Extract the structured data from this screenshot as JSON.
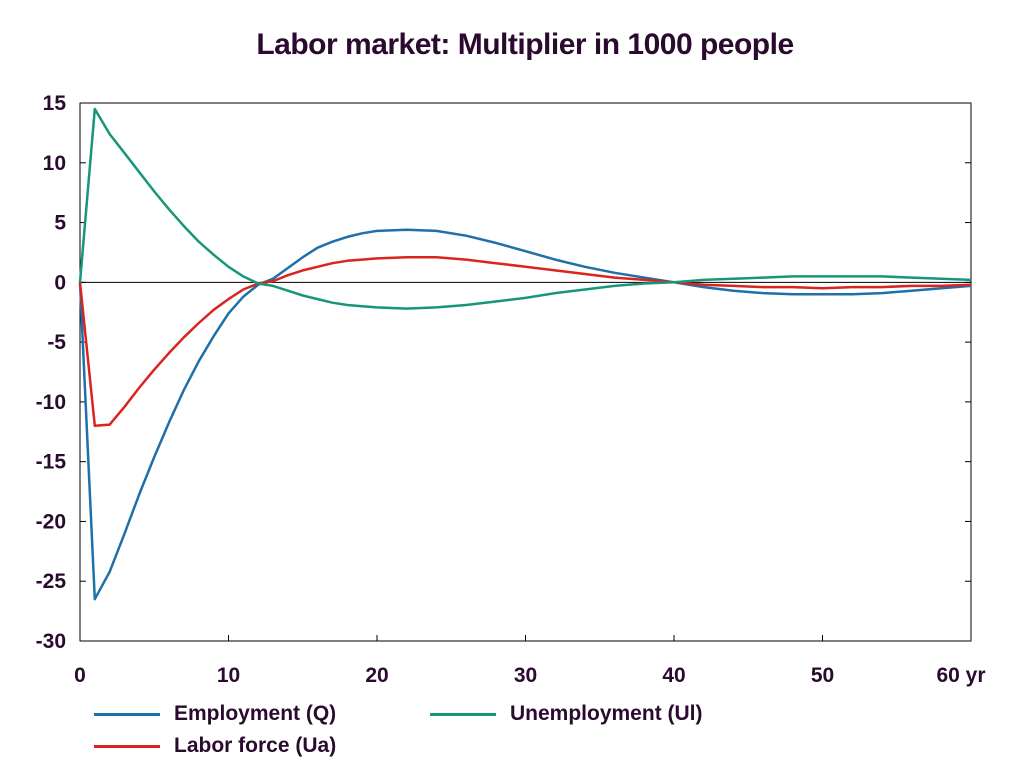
{
  "chart_data": {
    "type": "line",
    "title": "Labor market: Multiplier in 1000 people",
    "xlabel": "",
    "ylabel": "",
    "xlim": [
      0,
      60
    ],
    "ylim": [
      -30,
      15
    ],
    "x_ticks": [
      0,
      10,
      20,
      30,
      40,
      50,
      60
    ],
    "x_tick_labels": [
      "0",
      "10",
      "20",
      "30",
      "40",
      "50",
      "60 yr"
    ],
    "y_ticks": [
      15,
      10,
      5,
      0,
      -5,
      -10,
      -15,
      -20,
      -25,
      -30
    ],
    "y_tick_labels": [
      "15",
      "10",
      "5",
      "0",
      "-5",
      "-10",
      "-15",
      "-20",
      "-25",
      "-30"
    ],
    "grid": false,
    "zero_line": true,
    "legend_position": "bottom",
    "series": [
      {
        "name": "Employment (Q)",
        "color": "#1f6fa8",
        "x": [
          0,
          1,
          2,
          3,
          4,
          5,
          6,
          7,
          8,
          9,
          10,
          11,
          12,
          13,
          14,
          15,
          16,
          17,
          18,
          19,
          20,
          22,
          24,
          26,
          28,
          30,
          32,
          34,
          36,
          38,
          40,
          42,
          44,
          46,
          48,
          50,
          52,
          54,
          56,
          58,
          60
        ],
        "y": [
          0,
          -26.5,
          -24.2,
          -21.0,
          -17.7,
          -14.6,
          -11.7,
          -9.0,
          -6.6,
          -4.5,
          -2.6,
          -1.2,
          -0.2,
          0.3,
          1.2,
          2.1,
          2.9,
          3.4,
          3.8,
          4.1,
          4.3,
          4.4,
          4.3,
          3.9,
          3.3,
          2.6,
          1.9,
          1.3,
          0.8,
          0.4,
          0.0,
          -0.4,
          -0.7,
          -0.9,
          -1.0,
          -1.0,
          -1.0,
          -0.9,
          -0.7,
          -0.5,
          -0.3
        ]
      },
      {
        "name": "Labor force (Ua)",
        "color": "#d9241f",
        "x": [
          0,
          1,
          2,
          3,
          4,
          5,
          6,
          7,
          8,
          9,
          10,
          11,
          12,
          13,
          14,
          15,
          16,
          17,
          18,
          19,
          20,
          22,
          24,
          26,
          28,
          30,
          32,
          34,
          36,
          38,
          40,
          42,
          44,
          46,
          48,
          50,
          52,
          54,
          56,
          58,
          60
        ],
        "y": [
          0,
          -12.0,
          -11.9,
          -10.4,
          -8.8,
          -7.3,
          -5.9,
          -4.6,
          -3.4,
          -2.3,
          -1.4,
          -0.6,
          -0.1,
          0.1,
          0.6,
          1.0,
          1.3,
          1.6,
          1.8,
          1.9,
          2.0,
          2.1,
          2.1,
          1.9,
          1.6,
          1.3,
          1.0,
          0.7,
          0.4,
          0.2,
          0.0,
          -0.2,
          -0.3,
          -0.4,
          -0.4,
          -0.5,
          -0.4,
          -0.4,
          -0.3,
          -0.3,
          -0.2
        ]
      },
      {
        "name": "Unemployment (Ul)",
        "color": "#17967a",
        "x": [
          0,
          1,
          2,
          3,
          4,
          5,
          6,
          7,
          8,
          9,
          10,
          11,
          12,
          13,
          14,
          15,
          16,
          17,
          18,
          19,
          20,
          22,
          24,
          26,
          28,
          30,
          32,
          34,
          36,
          38,
          40,
          42,
          44,
          46,
          48,
          50,
          52,
          54,
          56,
          58,
          60
        ],
        "y": [
          0,
          14.5,
          12.4,
          10.8,
          9.2,
          7.6,
          6.1,
          4.7,
          3.4,
          2.3,
          1.3,
          0.5,
          -0.1,
          -0.3,
          -0.7,
          -1.1,
          -1.4,
          -1.7,
          -1.9,
          -2.0,
          -2.1,
          -2.2,
          -2.1,
          -1.9,
          -1.6,
          -1.3,
          -0.9,
          -0.6,
          -0.3,
          -0.1,
          0.0,
          0.2,
          0.3,
          0.4,
          0.5,
          0.5,
          0.5,
          0.5,
          0.4,
          0.3,
          0.2
        ]
      }
    ]
  }
}
